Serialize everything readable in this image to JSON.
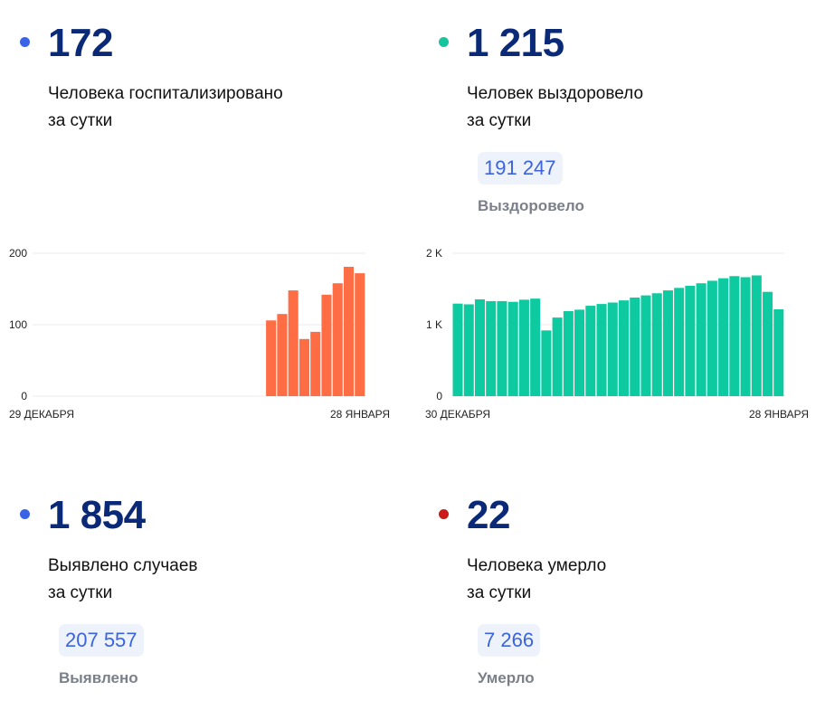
{
  "colors": {
    "blue_dot": "#3b63e6",
    "green_dot": "#14c59e",
    "red_dot": "#cc1a1a",
    "orange_bar": "#ff6d45",
    "green_bar": "#0ecaa0"
  },
  "hospitalized": {
    "value": "172",
    "desc_line1": "Человека госпитализировано",
    "desc_line2": "за сутки"
  },
  "recovered": {
    "value": "1 215",
    "desc_line1": "Человек выздоровело",
    "desc_line2": "за сутки",
    "total": "191 247",
    "total_label": "Выздоровело"
  },
  "cases": {
    "value": "1 854",
    "desc_line1": "Выявлено случаев",
    "desc_line2": "за сутки",
    "total": "207 557",
    "total_label": "Выявлено"
  },
  "deaths": {
    "value": "22",
    "desc_line1": "Человека умерло",
    "desc_line2": "за сутки",
    "total": "7 266",
    "total_label": "Умерло"
  },
  "chart_data": [
    {
      "type": "bar",
      "y_ticks": [
        "0",
        "100",
        "200"
      ],
      "ylim": [
        0,
        200
      ],
      "x_start_label": "29 ДЕКАБРЯ",
      "x_end_label": "28 ЯНВАРЯ",
      "grid": true,
      "values": [
        null,
        null,
        null,
        null,
        null,
        null,
        null,
        null,
        null,
        null,
        null,
        null,
        null,
        null,
        null,
        null,
        null,
        null,
        null,
        null,
        null,
        106,
        115,
        148,
        80,
        90,
        142,
        158,
        181,
        172
      ]
    },
    {
      "type": "bar",
      "y_ticks": [
        "0",
        "1 K",
        "2 K"
      ],
      "ylim": [
        0,
        2000
      ],
      "x_start_label": "30 ДЕКАБРЯ",
      "x_end_label": "28 ЯНВАРЯ",
      "grid": true,
      "values": [
        1295,
        1285,
        1355,
        1330,
        1330,
        1320,
        1350,
        1365,
        920,
        1100,
        1190,
        1210,
        1265,
        1290,
        1310,
        1340,
        1380,
        1410,
        1440,
        1480,
        1515,
        1545,
        1580,
        1615,
        1650,
        1680,
        1665,
        1690,
        1460,
        1215
      ]
    }
  ]
}
